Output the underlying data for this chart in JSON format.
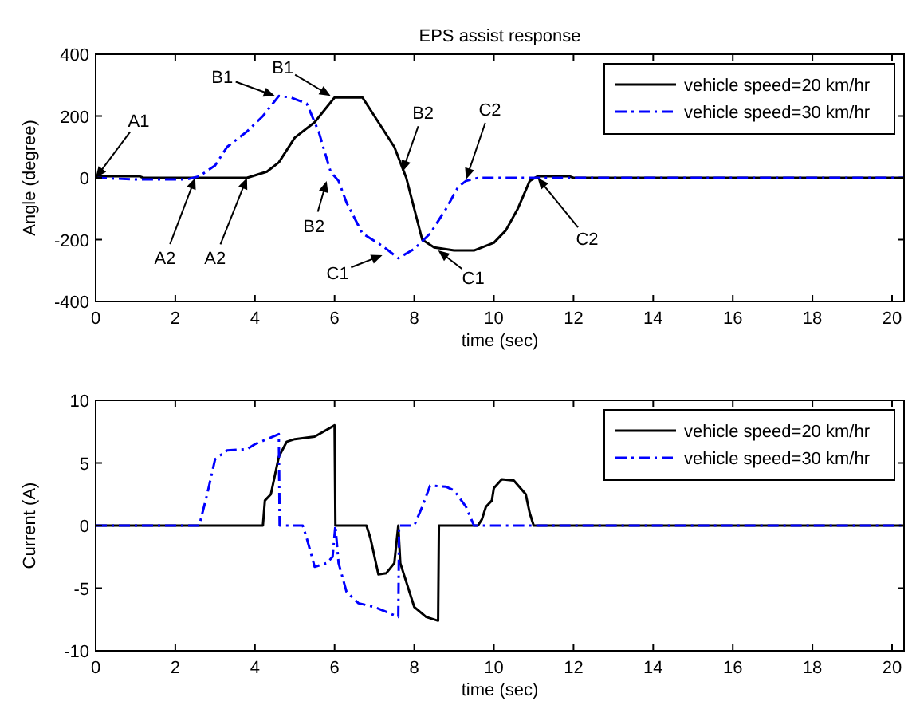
{
  "chart_data": [
    {
      "type": "line",
      "title": "EPS assist response",
      "xlabel": "time (sec)",
      "ylabel": "Angle (degree)",
      "xlim": [
        0,
        20.3
      ],
      "xticks": [
        0,
        2,
        4,
        6,
        8,
        10,
        12,
        14,
        16,
        18,
        20
      ],
      "ylim": [
        -400,
        400
      ],
      "yticks": [
        -400,
        -200,
        0,
        200,
        400
      ],
      "grid": false,
      "legend": "top right",
      "series": [
        {
          "name": "vehicle speed=20 km/hr",
          "color": "#000000",
          "line_style": "solid",
          "x": [
            0,
            1.1,
            1.2,
            3.8,
            4.3,
            4.6,
            5,
            5.5,
            6,
            6.7,
            7,
            7.5,
            7.8,
            8,
            8.2,
            8.5,
            9,
            9.5,
            10,
            10.3,
            10.6,
            10.9,
            11.1,
            11.9,
            12,
            20.3
          ],
          "values": [
            5,
            5,
            0,
            0,
            20,
            50,
            130,
            180,
            260,
            260,
            200,
            100,
            0,
            -100,
            -200,
            -225,
            -235,
            -235,
            -210,
            -170,
            -100,
            -10,
            5,
            5,
            0,
            0
          ]
        },
        {
          "name": "vehicle speed=30 km/hr",
          "color": "#0000ff",
          "line_style": "dashdot",
          "x": [
            0,
            1,
            2.3,
            2.6,
            3,
            3.3,
            3.8,
            4.2,
            4.6,
            4.9,
            5.3,
            5.6,
            5.9,
            6.1,
            6.3,
            6.7,
            7.2,
            7.6,
            8,
            8.4,
            8.8,
            9.1,
            9.3,
            9.6,
            20.3
          ],
          "values": [
            0,
            -5,
            -5,
            5,
            40,
            100,
            150,
            200,
            265,
            260,
            240,
            150,
            20,
            -10,
            -80,
            -180,
            -220,
            -260,
            -230,
            -180,
            -100,
            -30,
            -10,
            0,
            0
          ]
        }
      ],
      "annotations": [
        {
          "text": "A1",
          "x": 0,
          "y": 0
        },
        {
          "text": "A2",
          "x": 2.5,
          "y": 0
        },
        {
          "text": "A2",
          "x": 3.8,
          "y": 0
        },
        {
          "text": "B1",
          "x": 4.5,
          "y": 265
        },
        {
          "text": "B1",
          "x": 5.9,
          "y": 265
        },
        {
          "text": "B2",
          "x": 7.7,
          "y": 20
        },
        {
          "text": "B2",
          "x": 5.8,
          "y": -10
        },
        {
          "text": "C1",
          "x": 7.2,
          "y": -250
        },
        {
          "text": "C1",
          "x": 8.6,
          "y": -235
        },
        {
          "text": "C2",
          "x": 9.3,
          "y": -5
        },
        {
          "text": "C2",
          "x": 11.1,
          "y": 0
        }
      ]
    },
    {
      "type": "line",
      "xlabel": "time (sec)",
      "ylabel": "Current (A)",
      "xlim": [
        0,
        20.3
      ],
      "xticks": [
        0,
        2,
        4,
        6,
        8,
        10,
        12,
        14,
        16,
        18,
        20
      ],
      "ylim": [
        -10,
        10
      ],
      "yticks": [
        -10,
        -5,
        0,
        5,
        10
      ],
      "grid": false,
      "legend": "top right",
      "series": [
        {
          "name": "vehicle speed=20 km/hr",
          "color": "#000000",
          "line_style": "solid",
          "x": [
            0,
            4.2,
            4.25,
            4.4,
            4.5,
            4.6,
            4.8,
            5,
            5.5,
            6,
            6.02,
            6.8,
            6.9,
            7.1,
            7.3,
            7.5,
            7.6,
            7.65,
            7.8,
            8,
            8.3,
            8.6,
            8.62,
            9.6,
            9.7,
            9.8,
            9.95,
            10,
            10.2,
            10.5,
            10.8,
            10.9,
            11,
            20.3
          ],
          "values": [
            0,
            0,
            2,
            2.5,
            4,
            5.5,
            6.7,
            6.9,
            7.1,
            8,
            0,
            0,
            -1,
            -3.9,
            -3.8,
            -3,
            0,
            -3,
            -4.5,
            -6.5,
            -7.3,
            -7.6,
            0,
            0,
            0.5,
            1.5,
            2,
            3,
            3.7,
            3.6,
            2.5,
            1,
            0,
            0
          ]
        },
        {
          "name": "vehicle speed=30 km/hr",
          "color": "#0000ff",
          "line_style": "dashdot",
          "x": [
            0,
            2.6,
            2.8,
            3,
            3.3,
            3.8,
            4,
            4.6,
            4.62,
            5.2,
            5.3,
            5.5,
            5.8,
            5.95,
            6.02,
            6.1,
            6.3,
            6.6,
            7,
            7.6,
            7.62,
            8,
            8.2,
            8.4,
            8.8,
            9,
            9.3,
            9.5,
            20.3
          ],
          "values": [
            0,
            0,
            2.5,
            5.3,
            6,
            6.1,
            6.5,
            7.3,
            0,
            0,
            -1,
            -3.3,
            -3,
            -2.5,
            0,
            -3,
            -5.3,
            -6.2,
            -6.5,
            -7.3,
            0,
            0,
            1.5,
            3.2,
            3.1,
            2.8,
            1.5,
            0,
            0
          ]
        }
      ]
    }
  ]
}
